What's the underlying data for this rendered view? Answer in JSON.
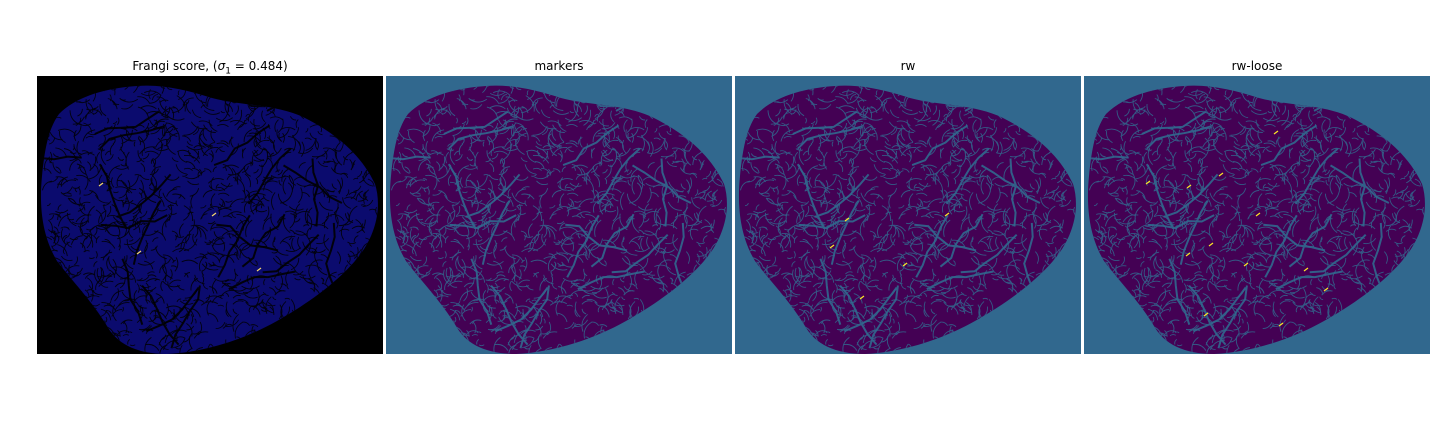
{
  "figure": {
    "panels": [
      {
        "id": "frangi",
        "title_prefix": "Frangi score, (",
        "title_sigma": "σ",
        "title_sub": "1",
        "title_suffix": " = 0.484)",
        "background_color": "#000000",
        "tissue_color": "#0b0b6e",
        "line_color": "#000000",
        "highlight_color": "#f5d76e"
      },
      {
        "id": "markers",
        "title": "markers",
        "background_color": "#31688e",
        "tissue_color": "#440154",
        "line_color": "#31688e",
        "highlight_color": "#fde725"
      },
      {
        "id": "rw",
        "title": "rw",
        "background_color": "#31688e",
        "tissue_color": "#440154",
        "line_color": "#31688e",
        "highlight_color": "#fde725"
      },
      {
        "id": "rw-loose",
        "title": "rw-loose",
        "background_color": "#31688e",
        "tissue_color": "#440154",
        "line_color": "#31688e",
        "highlight_color": "#fde725"
      }
    ]
  }
}
